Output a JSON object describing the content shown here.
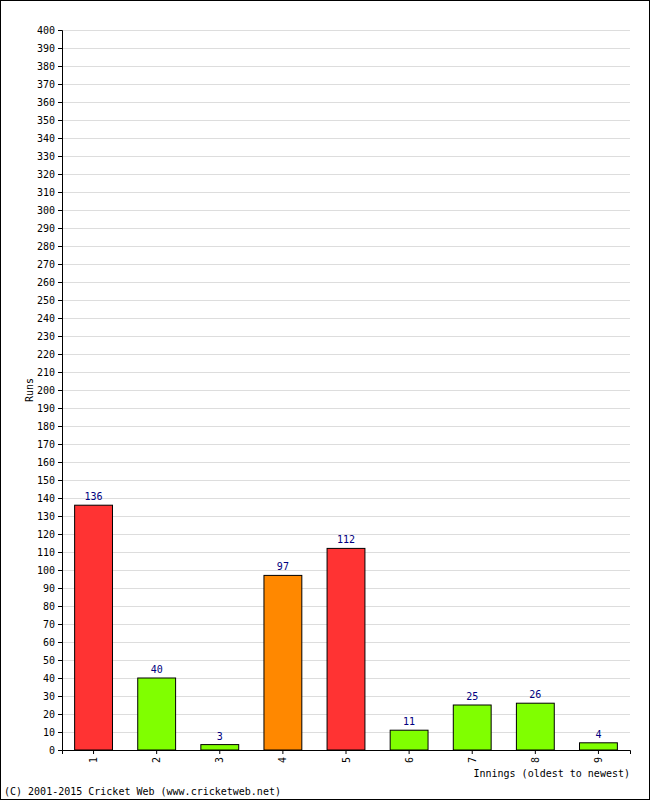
{
  "chart_data": {
    "type": "bar",
    "categories": [
      "1",
      "2",
      "3",
      "4",
      "5",
      "6",
      "7",
      "8",
      "9"
    ],
    "values": [
      136,
      40,
      3,
      97,
      112,
      11,
      25,
      26,
      4
    ],
    "colors": [
      "#ff3333",
      "#80ff00",
      "#80ff00",
      "#ff8800",
      "#ff3333",
      "#80ff00",
      "#80ff00",
      "#80ff00",
      "#80ff00"
    ],
    "x_label": "Innings (oldest to newest)",
    "y_label": "Runs",
    "annotations": [
      "(C) 2001-2015 Cricket Web (www.cricketweb.net)"
    ],
    "ylim": [
      0,
      400
    ],
    "yticks": [
      0,
      10,
      20,
      30,
      40,
      50,
      60,
      70,
      80,
      90,
      100,
      110,
      120,
      130,
      140,
      150,
      160,
      170,
      180,
      190,
      200,
      210,
      220,
      230,
      240,
      250,
      260,
      270,
      280,
      290,
      300,
      310,
      320,
      330,
      340,
      350,
      360,
      370,
      380,
      390,
      400
    ],
    "grid": true,
    "data_labels": true
  }
}
